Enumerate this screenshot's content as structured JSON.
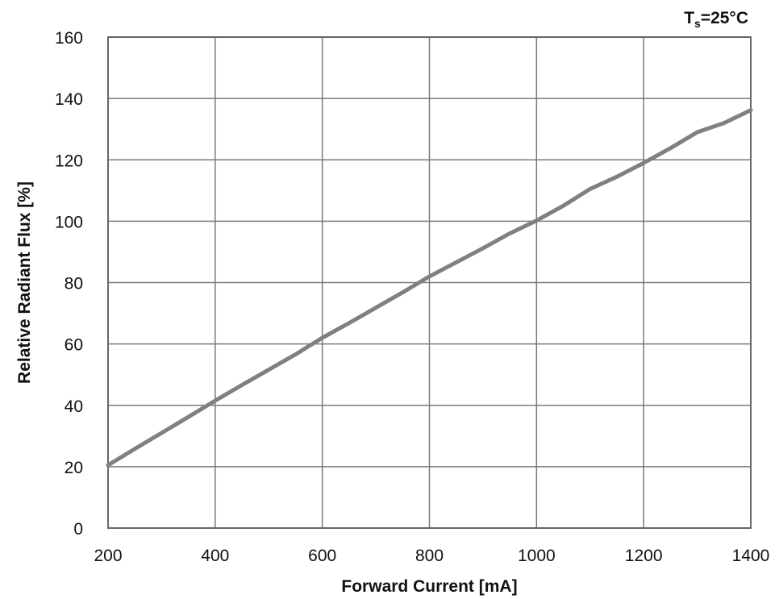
{
  "chart_data": {
    "type": "line",
    "title": "",
    "xlabel": "Forward Current [mA]",
    "ylabel": "Relative Radiant Flux [%]",
    "xlim": [
      200,
      1400
    ],
    "ylim": [
      0,
      160
    ],
    "xticks": [
      "200",
      "400",
      "600",
      "800",
      "1000",
      "1200",
      "1400"
    ],
    "yticks": [
      "0",
      "20",
      "40",
      "60",
      "80",
      "100",
      "120",
      "140",
      "160"
    ],
    "grid": true,
    "annotation": {
      "main": "T",
      "sub": "s",
      "rest": "=25°C"
    },
    "line_color": "#808080",
    "series": [
      {
        "x": [
          200,
          250,
          300,
          350,
          400,
          450,
          500,
          550,
          600,
          650,
          700,
          750,
          800,
          850,
          900,
          950,
          1000,
          1050,
          1100,
          1150,
          1200,
          1250,
          1300,
          1350,
          1400
        ],
        "values": [
          20.5,
          25.8,
          31.0,
          36.2,
          41.5,
          46.6,
          51.6,
          56.6,
          62.0,
          66.8,
          71.8,
          76.8,
          82.0,
          86.6,
          91.2,
          96.0,
          100.2,
          105.0,
          110.5,
          114.5,
          119.0,
          123.8,
          129.0,
          132.0,
          136.2
        ]
      }
    ]
  }
}
